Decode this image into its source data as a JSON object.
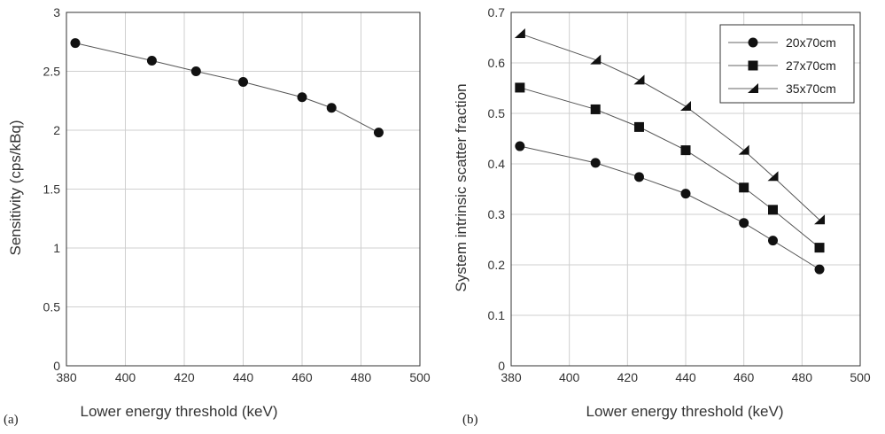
{
  "chart_data": [
    {
      "type": "line",
      "panel_label": "(a)",
      "xlabel": "Lower energy threshold (keV)",
      "ylabel": "Sensitivity (cps/kBq)",
      "xlim": [
        380,
        500
      ],
      "ylim": [
        0,
        3
      ],
      "xticks": [
        380,
        400,
        420,
        440,
        460,
        480,
        500
      ],
      "yticks": [
        0,
        0.5,
        1,
        1.5,
        2,
        2.5,
        3
      ],
      "ytick_labels": [
        "0",
        "0.5",
        "1",
        "1.5",
        "2",
        "2.5",
        "3"
      ],
      "grid": true,
      "series": [
        {
          "marker": "circle",
          "x": [
            383,
            409,
            424,
            440,
            460,
            470,
            486
          ],
          "y": [
            2.74,
            2.59,
            2.5,
            2.41,
            2.28,
            2.19,
            1.98
          ]
        }
      ]
    },
    {
      "type": "line",
      "panel_label": "(b)",
      "xlabel": "Lower energy threshold (keV)",
      "ylabel": "System intrinsic scatter fraction",
      "xlim": [
        380,
        500
      ],
      "ylim": [
        0,
        0.7
      ],
      "xticks": [
        380,
        400,
        420,
        440,
        460,
        480,
        500
      ],
      "yticks": [
        0,
        0.1,
        0.2,
        0.3,
        0.4,
        0.5,
        0.6,
        0.7
      ],
      "ytick_labels": [
        "0",
        "0.1",
        "0.2",
        "0.3",
        "0.4",
        "0.5",
        "0.6",
        "0.7"
      ],
      "grid": true,
      "legend_position": "top-right",
      "series": [
        {
          "name": "20x70cm",
          "marker": "circle",
          "x": [
            383,
            409,
            424,
            440,
            460,
            470,
            486
          ],
          "y": [
            0.435,
            0.402,
            0.374,
            0.341,
            0.283,
            0.248,
            0.191
          ]
        },
        {
          "name": "27x70cm",
          "marker": "square",
          "x": [
            383,
            409,
            424,
            440,
            460,
            470,
            486
          ],
          "y": [
            0.551,
            0.508,
            0.473,
            0.427,
            0.353,
            0.309,
            0.234
          ]
        },
        {
          "name": "35x70cm",
          "marker": "triangle",
          "x": [
            383,
            409,
            424,
            440,
            460,
            470,
            486
          ],
          "y": [
            0.658,
            0.606,
            0.566,
            0.514,
            0.427,
            0.375,
            0.289
          ]
        }
      ]
    }
  ]
}
